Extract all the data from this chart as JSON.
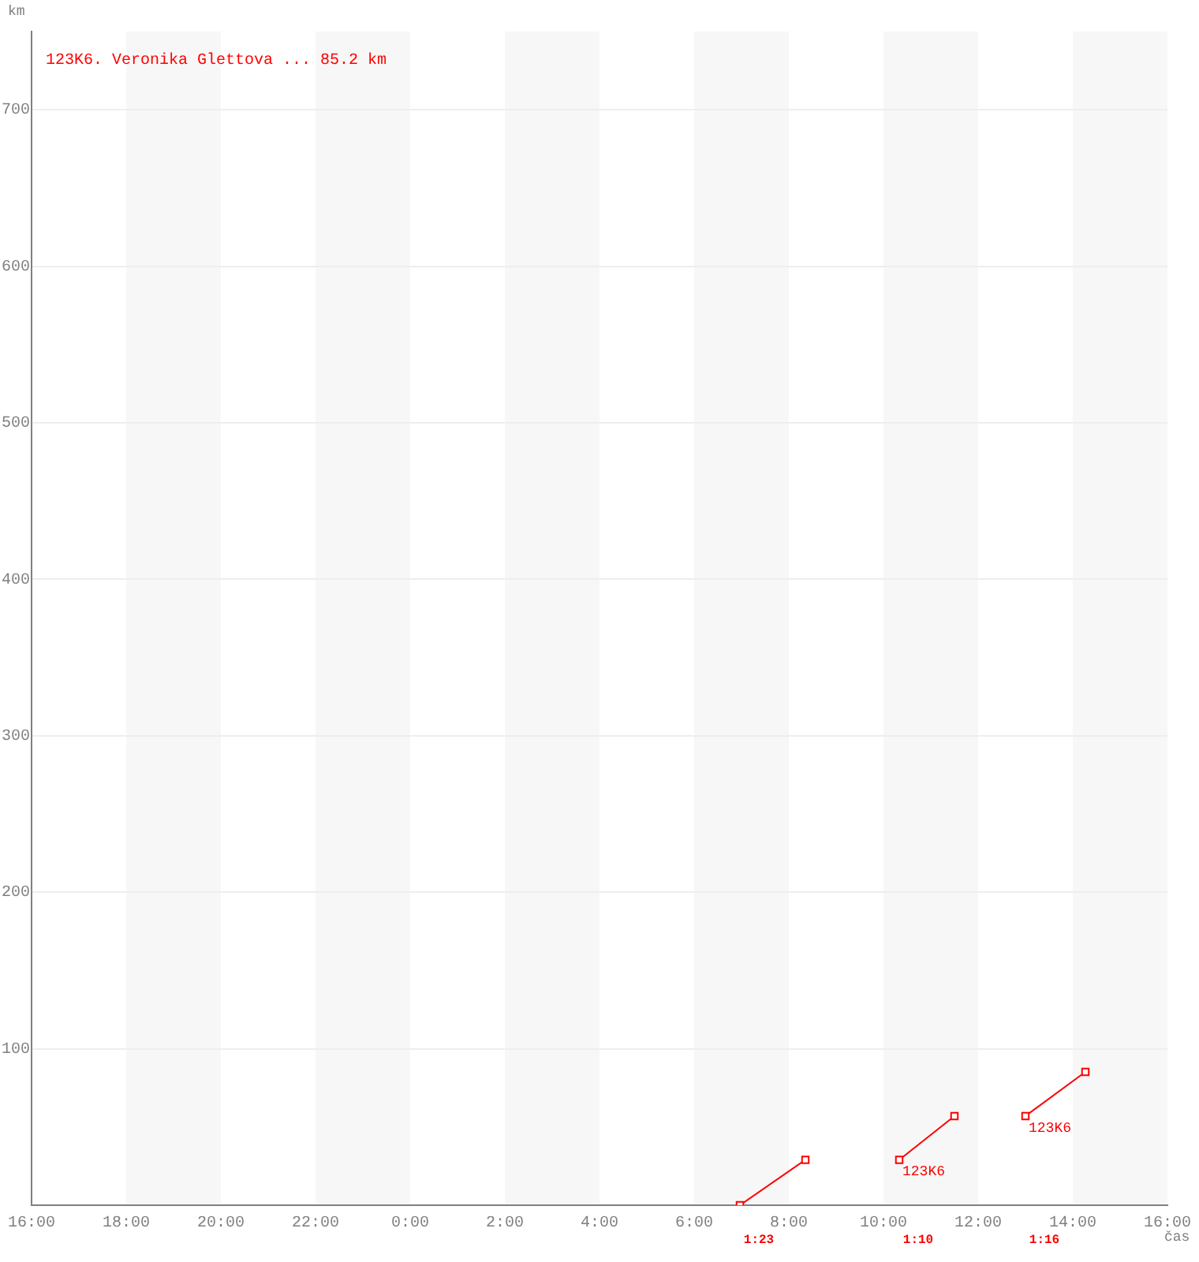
{
  "chart_data": {
    "type": "line",
    "xlabel": "čas",
    "ylabel": "km",
    "series": [
      {
        "name": "123K6. Veronika Glettova ... 85.2 km",
        "color": "#ff0000",
        "x": [
          "2000-01-02T06:58",
          "2000-01-02T08:21"
        ],
        "values": [
          0,
          29
        ]
      },
      {
        "color": "#ff0000",
        "x": [
          "2000-01-02T10:20",
          "2000-01-02T11:30"
        ],
        "values": [
          29,
          57
        ]
      },
      {
        "color": "#ff0000",
        "x": [
          "2000-01-02T13:00",
          "2000-01-02T14:16"
        ],
        "values": [
          57,
          85.2
        ]
      }
    ],
    "xlim": [
      "2000-01-01T16:00",
      "2000-01-02T16:00"
    ],
    "xticks": [
      {
        "value": "2000-01-01T16:00",
        "label": "16:00"
      },
      {
        "value": "2000-01-01T18:00",
        "label": "18:00"
      },
      {
        "value": "2000-01-01T20:00",
        "label": "20:00"
      },
      {
        "value": "2000-01-01T22:00",
        "label": "22:00"
      },
      {
        "value": "2000-01-02T00:00",
        "label": "0:00"
      },
      {
        "value": "2000-01-02T02:00",
        "label": "2:00"
      },
      {
        "value": "2000-01-02T04:00",
        "label": "4:00"
      },
      {
        "value": "2000-01-02T06:00",
        "label": "6:00"
      },
      {
        "value": "2000-01-02T08:00",
        "label": "8:00"
      },
      {
        "value": "2000-01-02T10:00",
        "label": "10:00"
      },
      {
        "value": "2000-01-02T12:00",
        "label": "12:00"
      },
      {
        "value": "2000-01-02T14:00",
        "label": "14:00"
      },
      {
        "value": "2000-01-02T16:00",
        "label": "16:00"
      }
    ],
    "ylim": [
      0,
      750
    ],
    "yticks": [
      100,
      200,
      300,
      400,
      500,
      600,
      700
    ],
    "bands": [
      {
        "axis": "x",
        "from": "2000-01-01T18:00",
        "to": "2000-01-01T20:00",
        "color": "#f7f7f7"
      },
      {
        "axis": "x",
        "from": "2000-01-01T22:00",
        "to": "2000-01-02T00:00",
        "color": "#f7f7f7"
      },
      {
        "axis": "x",
        "from": "2000-01-02T02:00",
        "to": "2000-01-02T04:00",
        "color": "#f7f7f7"
      },
      {
        "axis": "x",
        "from": "2000-01-02T06:00",
        "to": "2000-01-02T08:00",
        "color": "#f7f7f7"
      },
      {
        "axis": "x",
        "from": "2000-01-02T10:00",
        "to": "2000-01-02T12:00",
        "color": "#f7f7f7"
      },
      {
        "axis": "x",
        "from": "2000-01-02T14:00",
        "to": "2000-01-02T16:00",
        "color": "#f7f7f7"
      }
    ],
    "annotations": [
      {
        "text": "123K6",
        "x": "2000-01-02T10:20",
        "y": 29
      },
      {
        "text": "123K6",
        "x": "2000-01-02T13:00",
        "y": 57
      },
      "1:23",
      "1:10",
      "1:16"
    ],
    "grid": "y",
    "legend": "top left",
    "marker": "square"
  }
}
